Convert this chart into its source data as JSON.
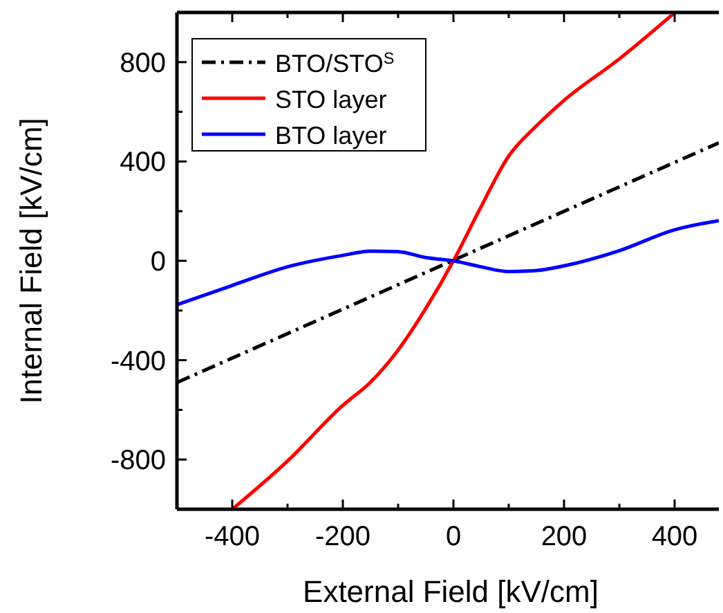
{
  "chart_data": {
    "type": "line",
    "xlabel": "External Field [kV/cm]",
    "ylabel": "Internal Field [kV/cm]",
    "xlim": [
      -500,
      480
    ],
    "ylim": [
      -1000,
      1000
    ],
    "xticks": [
      {
        "value": -500,
        "label": null
      },
      -400,
      {
        "value": -300,
        "label": null
      },
      -200,
      {
        "value": -100,
        "label": null
      },
      0,
      {
        "value": 100,
        "label": null
      },
      200,
      {
        "value": 300,
        "label": null
      },
      400
    ],
    "yticks": [
      {
        "value": -1000,
        "label": null
      },
      -800,
      {
        "value": -600,
        "label": null
      },
      -400,
      {
        "value": -200,
        "label": null
      },
      0,
      {
        "value": 200,
        "label": null
      },
      400,
      {
        "value": 600,
        "label": null
      },
      800,
      {
        "value": 1000,
        "label": null
      }
    ],
    "grid": false,
    "legend": "top left",
    "marker": "none",
    "series": [
      {
        "name": "BTO/STO$^{S}$",
        "color": "#000000",
        "line_style": "dashed",
        "x": [
          -500,
          480
        ],
        "values": [
          -490,
          475
        ]
      },
      {
        "name": "STO layer",
        "color": "#ff0000",
        "line_style": "solid",
        "x": [
          -400,
          -300,
          -200,
          -150,
          -100,
          -50,
          0,
          50,
          100,
          150,
          200,
          300,
          400
        ],
        "values": [
          -1000,
          -806,
          -582,
          -489,
          -359,
          -192,
          0,
          218,
          422,
          543,
          646,
          813,
          999
        ]
      },
      {
        "name": "BTO layer",
        "color": "#0000ff",
        "line_style": "solid",
        "x": [
          -500,
          -400,
          -300,
          -200,
          -150,
          -100,
          -50,
          0,
          50,
          100,
          150,
          200,
          300,
          400,
          480
        ],
        "values": [
          -177,
          -99,
          -24,
          22,
          39,
          37,
          13,
          0,
          -24,
          -43,
          -39,
          -20,
          41,
          125,
          162
        ]
      }
    ]
  }
}
